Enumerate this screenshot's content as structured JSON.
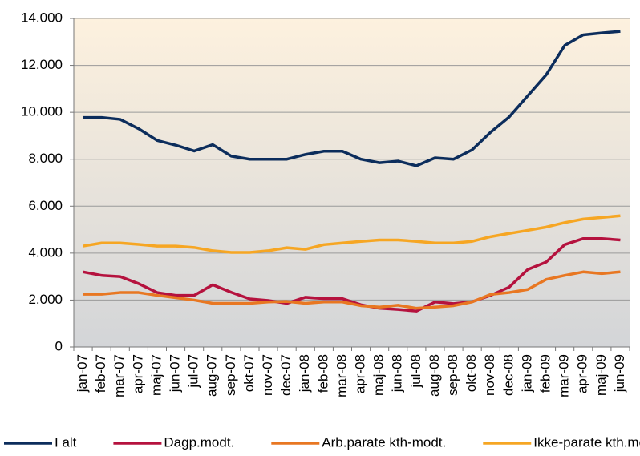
{
  "chart_data": {
    "type": "line",
    "categories": [
      "jan-07",
      "feb-07",
      "mar-07",
      "apr-07",
      "maj-07",
      "jun-07",
      "jul-07",
      "aug-07",
      "sep-07",
      "okt-07",
      "nov-07",
      "dec-07",
      "jan-08",
      "feb-08",
      "mar-08",
      "apr-08",
      "maj-08",
      "jun-08",
      "jul-08",
      "aug-08",
      "sep-08",
      "okt-08",
      "nov-08",
      "dec-08",
      "jan-09",
      "feb-09",
      "mar-09",
      "apr-09",
      "maj-09",
      "jun-09"
    ],
    "series": [
      {
        "name": "I alt",
        "color": "#0c2d5c",
        "values": [
          9780,
          9780,
          9700,
          9300,
          8800,
          8600,
          8350,
          8620,
          8130,
          8000,
          8000,
          8000,
          8200,
          8340,
          8340,
          8000,
          7850,
          7920,
          7720,
          8060,
          8000,
          8400,
          9150,
          9800,
          10700,
          11600,
          12850,
          13300,
          13380,
          13450
        ]
      },
      {
        "name": "Dagp.modt.",
        "color": "#b5123e",
        "values": [
          3200,
          3050,
          3000,
          2700,
          2320,
          2200,
          2200,
          2650,
          2330,
          2050,
          1980,
          1860,
          2120,
          2060,
          2060,
          1800,
          1650,
          1600,
          1530,
          1920,
          1850,
          1930,
          2200,
          2550,
          3300,
          3620,
          4360,
          4620,
          4620,
          4560
        ]
      },
      {
        "name": "Arb.parate kth-modt.",
        "color": "#e87722",
        "values": [
          2250,
          2250,
          2320,
          2320,
          2200,
          2100,
          2000,
          1860,
          1860,
          1860,
          1920,
          1940,
          1860,
          1920,
          1920,
          1760,
          1700,
          1780,
          1650,
          1700,
          1760,
          1920,
          2240,
          2320,
          2450,
          2880,
          3050,
          3200,
          3130,
          3200
        ]
      },
      {
        "name": "Ikke-parate kth.modt.",
        "color": "#f6a623",
        "values": [
          4300,
          4430,
          4430,
          4370,
          4300,
          4300,
          4240,
          4100,
          4030,
          4030,
          4100,
          4230,
          4160,
          4360,
          4430,
          4500,
          4560,
          4560,
          4500,
          4430,
          4430,
          4500,
          4700,
          4840,
          4970,
          5110,
          5300,
          5450,
          5520,
          5590
        ]
      }
    ],
    "ylim": [
      0,
      14000
    ],
    "yticks": [
      0,
      {
        "value": 2000,
        "label": "2.000"
      },
      {
        "value": 4000,
        "label": "4.000"
      },
      {
        "value": 6000,
        "label": "6.000"
      },
      {
        "value": 8000,
        "label": "8.000"
      },
      {
        "value": 10000,
        "label": "10.000"
      },
      {
        "value": 12000,
        "label": "12.000"
      },
      {
        "value": 14000,
        "label": "14.000"
      }
    ],
    "grid": true,
    "legend": "bottom"
  }
}
